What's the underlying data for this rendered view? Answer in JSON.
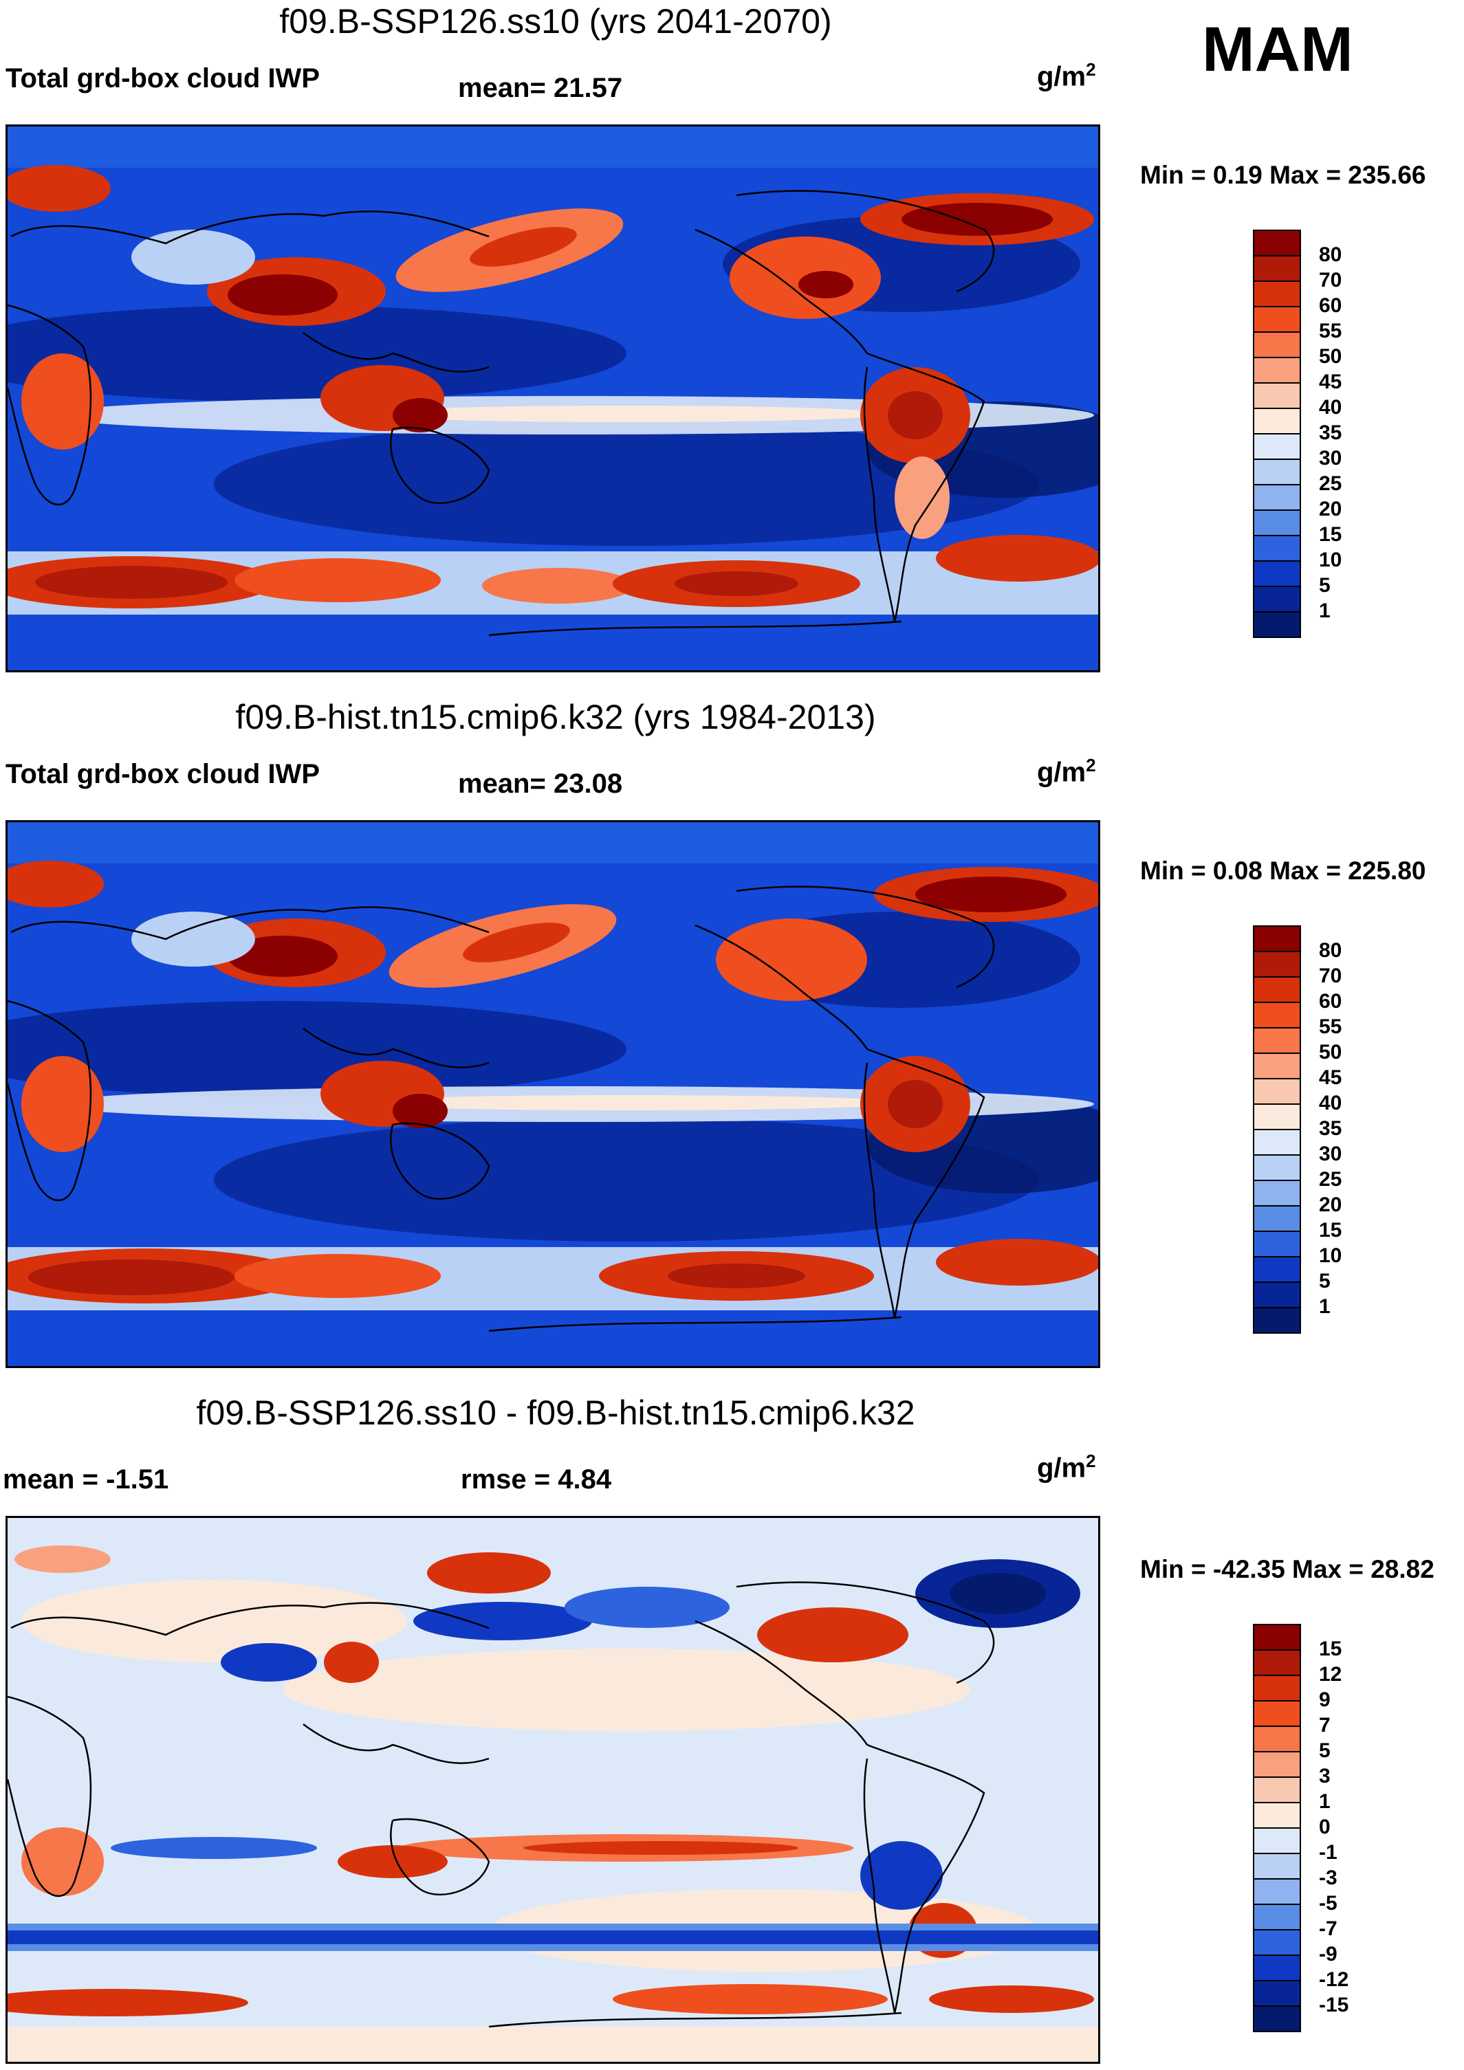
{
  "season": "MAM",
  "units_base": "g/m",
  "units_exp": "2",
  "panels": [
    {
      "title": "f09.B-SSP126.ss10 (yrs 2041-2070)",
      "left_label": "Total grd-box cloud IWP",
      "mid_label": "mean=  21.57",
      "minmax": "Min =   0.19 Max = 235.66",
      "colorbar_ticks": [
        "80",
        "70",
        "60",
        "55",
        "50",
        "45",
        "40",
        "35",
        "30",
        "25",
        "20",
        "15",
        "10",
        "5",
        "1"
      ],
      "colors": [
        "#8b0000",
        "#b01a08",
        "#d8320c",
        "#ef4e1e",
        "#f7764a",
        "#f9a07f",
        "#f8c8b0",
        "#fbeadc",
        "#dde9f8",
        "#b9d1f4",
        "#8fb3ee",
        "#5a8ee6",
        "#2d63de",
        "#1039c3",
        "#072596",
        "#041a6c"
      ]
    },
    {
      "title": "f09.B-hist.tn15.cmip6.k32 (yrs 1984-2013)",
      "left_label": "Total grd-box cloud IWP",
      "mid_label": "mean=  23.08",
      "minmax": "Min =   0.08 Max = 225.80",
      "colorbar_ticks": [
        "80",
        "70",
        "60",
        "55",
        "50",
        "45",
        "40",
        "35",
        "30",
        "25",
        "20",
        "15",
        "10",
        "5",
        "1"
      ],
      "colors": [
        "#8b0000",
        "#b01a08",
        "#d8320c",
        "#ef4e1e",
        "#f7764a",
        "#f9a07f",
        "#f8c8b0",
        "#fbeadc",
        "#dde9f8",
        "#b9d1f4",
        "#8fb3ee",
        "#5a8ee6",
        "#2d63de",
        "#1039c3",
        "#072596",
        "#041a6c"
      ]
    },
    {
      "title": "f09.B-SSP126.ss10 - f09.B-hist.tn15.cmip6.k32",
      "left_label": "mean =  -1.51",
      "mid_label": "rmse =    4.84",
      "minmax": "Min = -42.35 Max =  28.82",
      "colorbar_ticks": [
        "15",
        "12",
        "9",
        "7",
        "5",
        "3",
        "1",
        "0",
        "-1",
        "-3",
        "-5",
        "-7",
        "-9",
        "-12",
        "-15"
      ],
      "colors": [
        "#8b0000",
        "#b01a08",
        "#d8320c",
        "#ef4e1e",
        "#f7764a",
        "#f9a07f",
        "#f8c8b0",
        "#fbeadc",
        "#dde9f8",
        "#b9d1f4",
        "#8fb3ee",
        "#5a8ee6",
        "#2d63de",
        "#1039c3",
        "#072596",
        "#041a6c"
      ]
    }
  ]
}
